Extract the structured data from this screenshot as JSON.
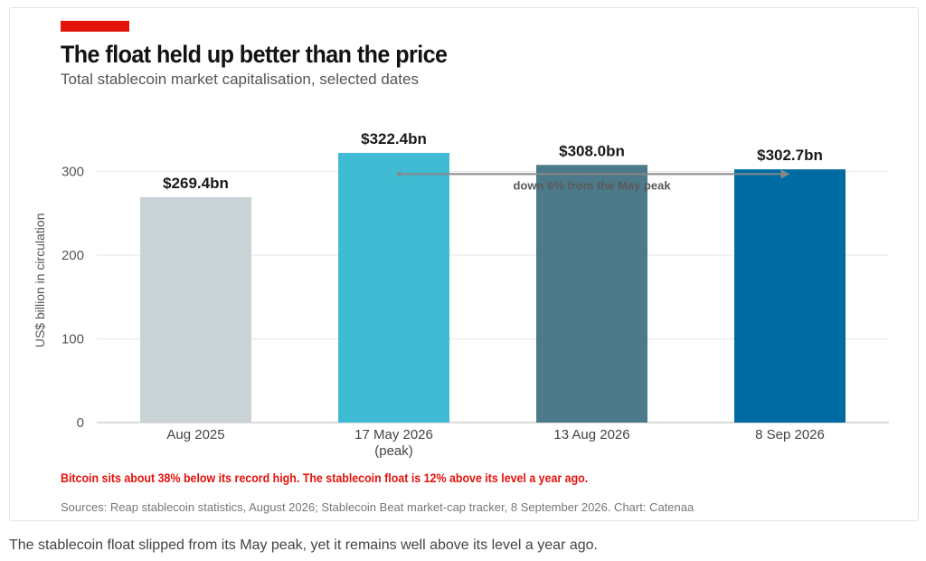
{
  "chart_data": {
    "type": "bar",
    "title": "The float held up better than the price",
    "subtitle": "Total stablecoin market capitalisation, selected dates",
    "ylabel": "US$ billion in circulation",
    "xlabel": "",
    "ylim": [
      0,
      340
    ],
    "yticks": [
      0,
      100,
      200,
      300
    ],
    "grid": true,
    "categories": [
      {
        "line1": "Aug 2025",
        "line2": ""
      },
      {
        "line1": "17 May 2026",
        "line2": "(peak)"
      },
      {
        "line1": "13 Aug 2026",
        "line2": ""
      },
      {
        "line1": "8 Sep 2026",
        "line2": ""
      }
    ],
    "values": [
      269.4,
      322.4,
      308.0,
      302.7
    ],
    "value_labels": [
      "$269.4bn",
      "$322.4bn",
      "$308.0bn",
      "$302.7bn"
    ],
    "colors": [
      "#c9d3d6",
      "#3fbcd3",
      "#4d7a8a",
      "#006ba2"
    ],
    "annotation": {
      "text": "down 6% from the May peak",
      "from_category": 1,
      "to_category": 3,
      "y_value": 297,
      "color": "#888888"
    }
  },
  "note": "Bitcoin sits about 38% below its record high. The stablecoin float is 12% above its level a year ago.",
  "source": "Sources: Reap stablecoin statistics, August 2026; Stablecoin Beat market-cap tracker, 8 September 2026. Chart: Catenaa",
  "caption": "The stablecoin float slipped from its May peak, yet it remains well above its level a year ago.",
  "colors": {
    "accent": "#e3120b",
    "gridline": "#e6e6e6",
    "axis_text": "#555555"
  }
}
